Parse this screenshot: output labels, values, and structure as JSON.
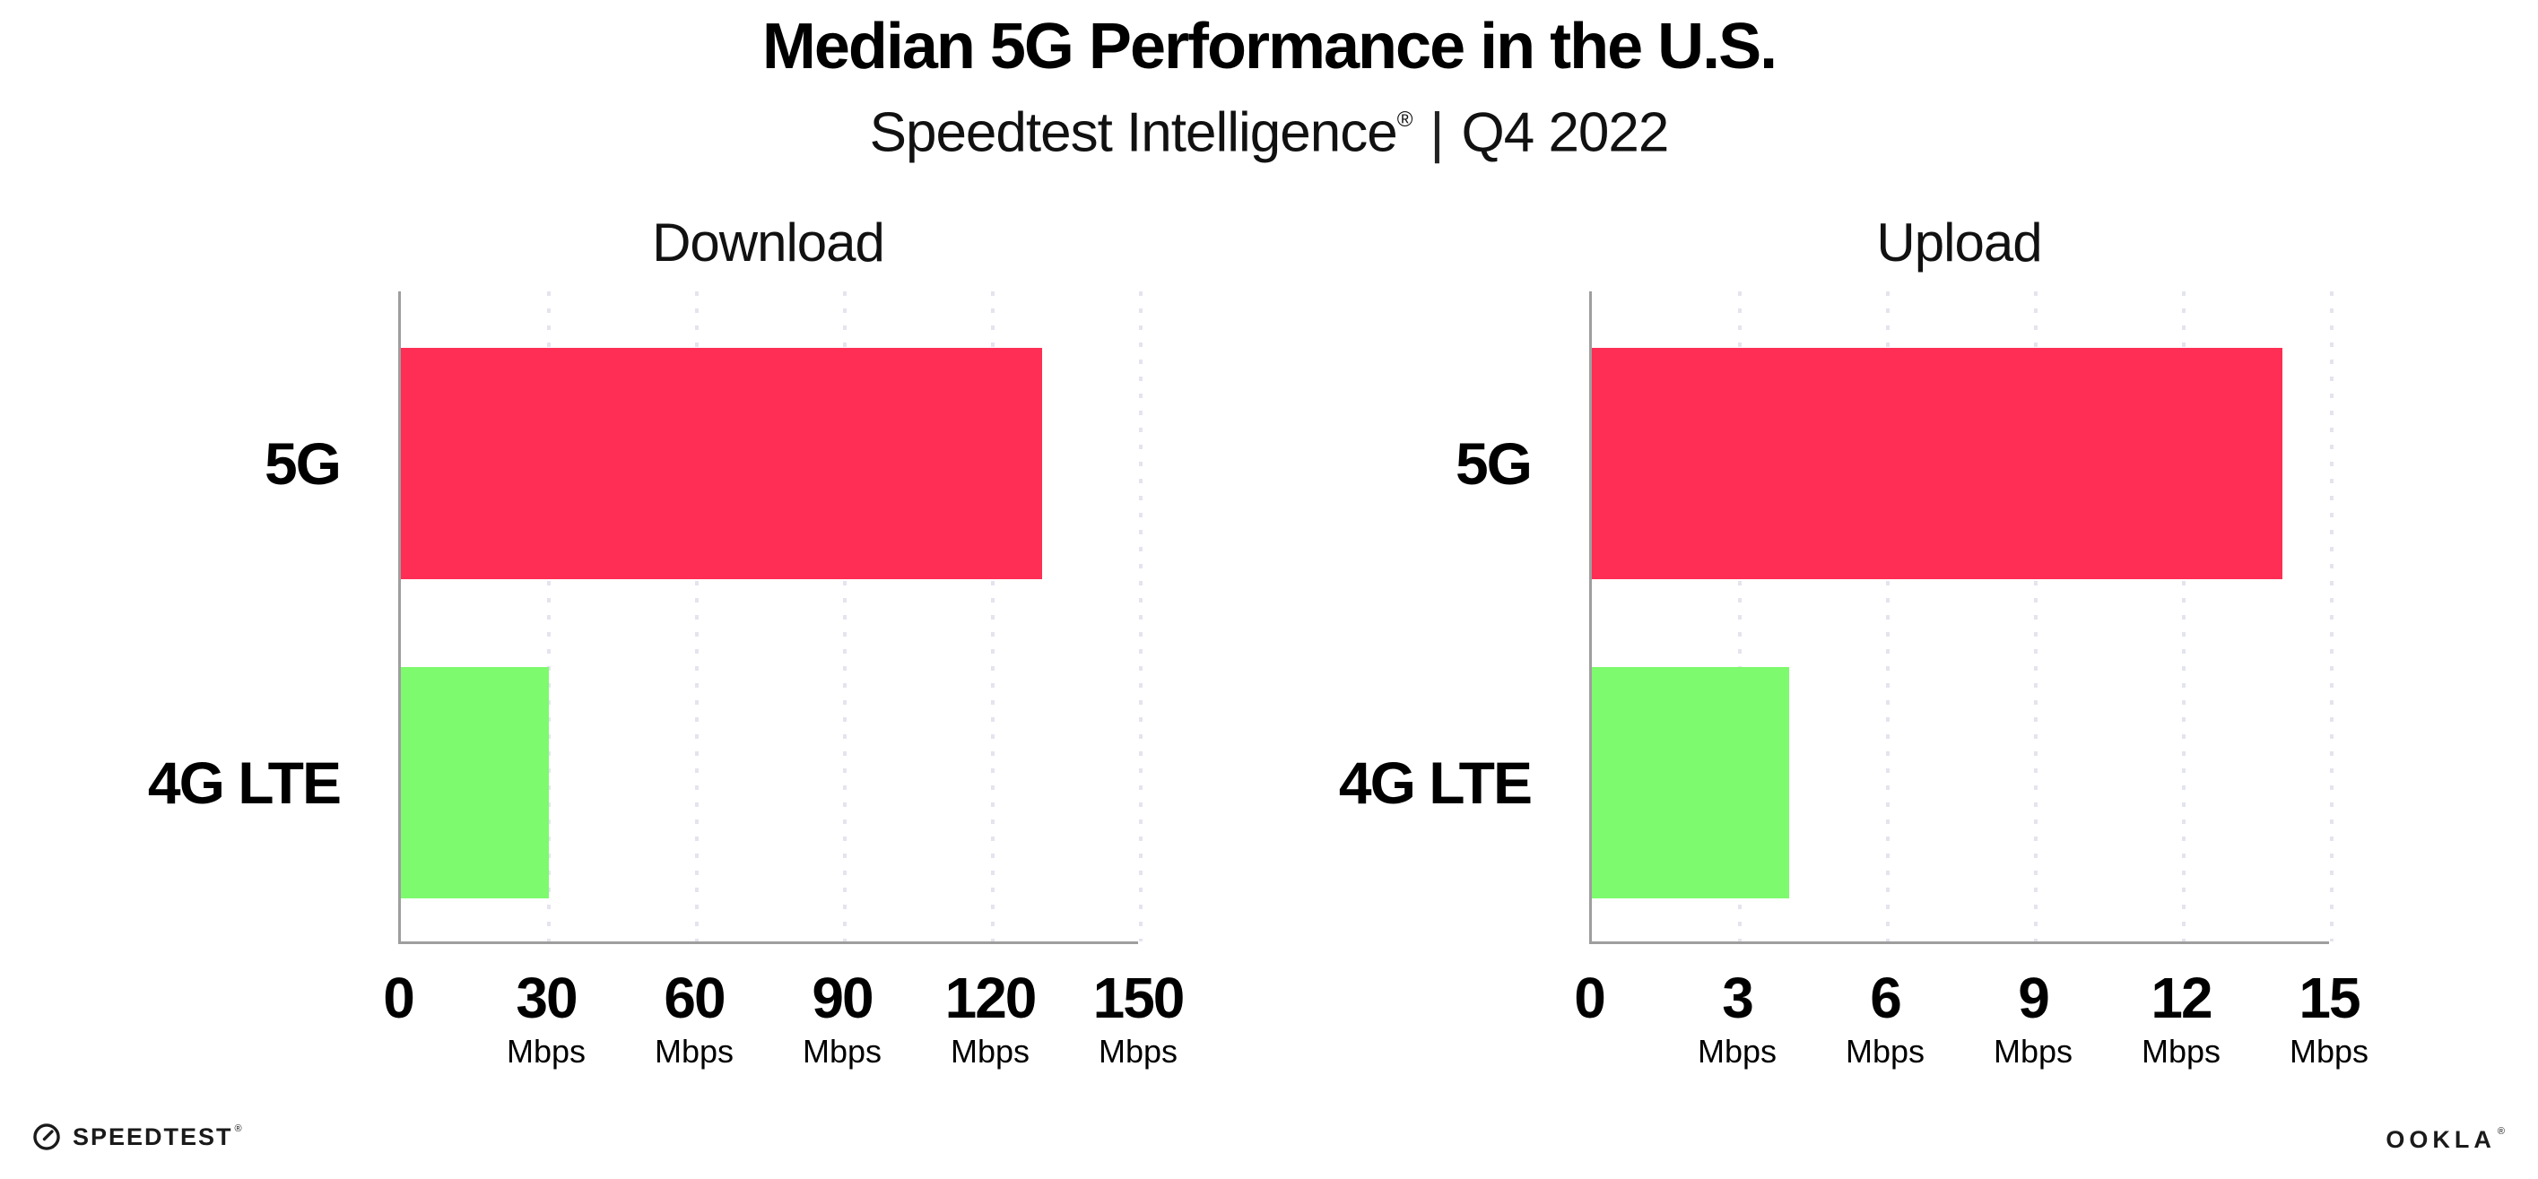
{
  "header": {
    "title": "Median 5G Performance in the U.S.",
    "subtitle_brand": "Speedtest Intelligence",
    "subtitle_mark": "®",
    "subtitle_separator": "|",
    "subtitle_period": "Q4 2022"
  },
  "chart_data": [
    {
      "type": "bar",
      "orientation": "horizontal",
      "title": "Download",
      "categories": [
        "5G",
        "4G LTE"
      ],
      "values": [
        130,
        30
      ],
      "unit": "Mbps",
      "xlim": [
        0,
        150
      ],
      "xticks": [
        0,
        30,
        60,
        90,
        120,
        150
      ],
      "bar_colors": [
        "#FF2E55",
        "#7DFA6D"
      ],
      "grid": "vertical-dotted",
      "legend": "none"
    },
    {
      "type": "bar",
      "orientation": "horizontal",
      "title": "Upload",
      "categories": [
        "5G",
        "4G LTE"
      ],
      "values": [
        14,
        4
      ],
      "unit": "Mbps",
      "xlim": [
        0,
        15
      ],
      "xticks": [
        0,
        3,
        6,
        9,
        12,
        15
      ],
      "bar_colors": [
        "#FF2E55",
        "#7DFA6D"
      ],
      "grid": "vertical-dotted",
      "legend": "none"
    }
  ],
  "footer": {
    "speedtest_label": "SPEEDTEST",
    "speedtest_mark": "®",
    "ookla_label": "OOKLA",
    "ookla_mark": "®"
  },
  "colors": {
    "bar_5g": "#FF2E55",
    "bar_4g_lte": "#7DFA6D",
    "axis": "#9E9E9E",
    "gridline": "#E4E4EF",
    "text": "#000000",
    "background": "#FFFFFF"
  }
}
